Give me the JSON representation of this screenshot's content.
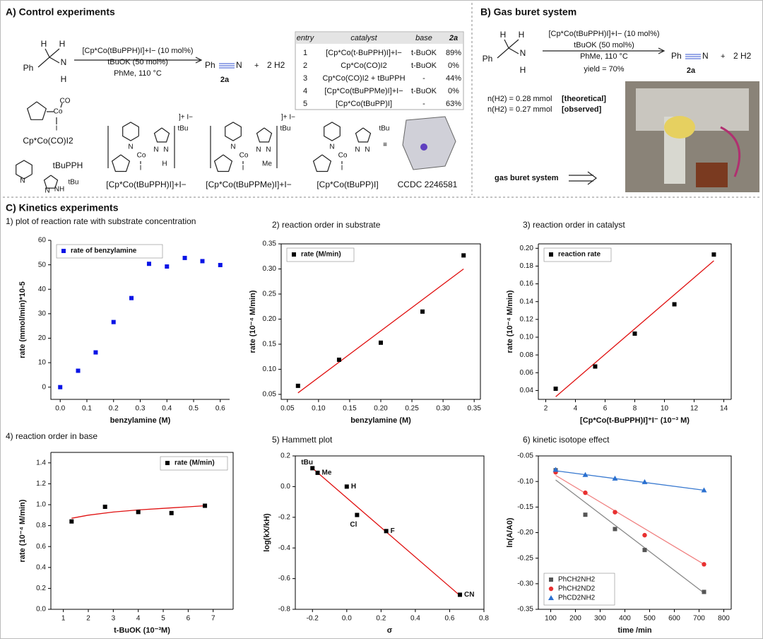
{
  "panel_a": {
    "title": "A) Control experiments",
    "substrate_atoms": [
      "H",
      "H",
      "Ph",
      "N",
      "H"
    ],
    "conditions": [
      "[Cp*Co(tBuPPH)I]+I− (10 mol%)",
      "tBuOK (50 mol%)",
      "PhMe, 110 °C"
    ],
    "product": {
      "ph": "Ph",
      "n": "N",
      "label": "2a",
      "plus": "+",
      "h2": "2 H2"
    },
    "table": {
      "headers": [
        "entry",
        "catalyst",
        "base",
        "2a"
      ],
      "rows": [
        [
          "1",
          "[Cp*Co(t-BuPPH)I]+I−",
          "t-BuOK",
          "89%"
        ],
        [
          "2",
          "Cp*Co(CO)I2",
          "t-BuOK",
          "0%"
        ],
        [
          "3",
          "Cp*Co(CO)I2 + tBuPPH",
          "-",
          "44%"
        ],
        [
          "4",
          "[Cp*Co(tBuPPMe)I]+I−",
          "t-BuOK",
          "0%"
        ],
        [
          "5",
          "[Cp*Co(tBuPP)I]",
          "-",
          "63%"
        ]
      ]
    },
    "structures": [
      {
        "name": "Cp*Co(CO)I2",
        "atoms": [
          "Co",
          "CO",
          "I"
        ]
      },
      {
        "name": "tBuPPH",
        "atoms": [
          "N",
          "N",
          "NH",
          "tBu"
        ]
      },
      {
        "name": "[Cp*Co(tBuPPH)I]+I−",
        "atoms": [
          "N",
          "Co",
          "N",
          "N",
          "H",
          "I",
          "tBu",
          "]+ I−"
        ]
      },
      {
        "name": "[Cp*Co(tBuPPMe)I]+I−",
        "atoms": [
          "N",
          "Co",
          "N",
          "N",
          "Me",
          "I",
          "tBu",
          "]+ I−"
        ]
      },
      {
        "name": "[Cp*Co(tBuPP)I]",
        "atoms": [
          "N",
          "Co",
          "N",
          "N",
          "I",
          "tBu"
        ]
      },
      {
        "name": "CCDC 2246581",
        "atoms": [
          "≡"
        ]
      }
    ]
  },
  "panel_b": {
    "title": "B) Gas buret system",
    "substrate_atoms": [
      "H",
      "H",
      "Ph",
      "N",
      "H"
    ],
    "conditions": [
      "[Cp*Co(tBuPPH)I]+I− (10 mol%)",
      "tBuOK (50 mol%)",
      "PhMe, 110 °C",
      "yield = 70%"
    ],
    "product": {
      "ph": "Ph",
      "n": "N",
      "label": "2a",
      "plus": "+",
      "h2": "2 H2"
    },
    "measurements": [
      {
        "text": "n(H2) = 0.28 mmol",
        "tag": "[theoretical]"
      },
      {
        "text": "n(H2) = 0.27 mmol",
        "tag": "[observed]"
      }
    ],
    "photo_label": "gas buret system"
  },
  "panel_c": {
    "title": "C) Kinetics experiments"
  },
  "chart_data": [
    {
      "type": "scatter",
      "title": "1) plot of reaction rate with substrate concentration",
      "x_label": "benzylamine (M)",
      "y_label": "rate (mmol/min)*10-5",
      "xlim": [
        -0.035,
        0.635
      ],
      "xticks": [
        {
          "value": 0,
          "label": "0.0"
        },
        0.1,
        0.2,
        0.3,
        0.4,
        0.5,
        0.6
      ],
      "ylim": [
        -5,
        60
      ],
      "yticks": [
        0,
        10,
        20,
        30,
        40,
        50,
        60
      ],
      "legend": "upper left",
      "series": [
        {
          "name": "rate of benzylamine",
          "color": "#0a14e6",
          "marker": "square",
          "x": [
            0,
            0.067,
            0.133,
            0.2,
            0.267,
            0.333,
            0.4,
            0.467,
            0.533,
            0.6
          ],
          "values": [
            0,
            6.7,
            14.2,
            26.6,
            36.4,
            50.4,
            49.3,
            52.8,
            51.5,
            49.9
          ]
        }
      ]
    },
    {
      "type": "scatter",
      "title": "2) reaction order in substrate",
      "x_label": "benzylamine  (M)",
      "y_label": "rate (10⁻⁴ M/min)",
      "xlim": [
        0.04,
        0.36
      ],
      "xticks": [
        0.05,
        {
          "value": 0.1,
          "label": "0.10"
        },
        0.15,
        {
          "value": 0.2,
          "label": "0.20"
        },
        0.25,
        {
          "value": 0.3,
          "label": "0.30"
        },
        0.35
      ],
      "ylim": [
        0.04,
        0.35
      ],
      "yticks": [
        0.05,
        {
          "value": 0.1,
          "label": "0.10"
        },
        0.15,
        {
          "value": 0.2,
          "label": "0.20"
        },
        0.25,
        {
          "value": 0.3,
          "label": "0.30"
        },
        0.35
      ],
      "legend": "upper left",
      "series": [
        {
          "name": "rate (M/min)",
          "color": "#000000",
          "marker": "square",
          "x": [
            0.067,
            0.133,
            0.2,
            0.267,
            0.333
          ],
          "values": [
            0.067,
            0.119,
            0.153,
            0.215,
            0.327
          ],
          "fit": {
            "color": "#e01010",
            "x": [
              0.067,
              0.333
            ],
            "values": [
              0.053,
              0.3
            ]
          }
        }
      ]
    },
    {
      "type": "scatter",
      "title": "3) reaction order in catalyst",
      "x_label": "[Cp*Co(t-BuPPH)I]⁺I⁻ (10⁻³ M)",
      "y_label": "rate (10⁻⁴ M/min)",
      "xlim": [
        1.5,
        14.5
      ],
      "xticks": [
        2,
        4,
        6,
        8,
        10,
        12,
        14
      ],
      "ylim": [
        0.03,
        0.205
      ],
      "yticks": [
        0.04,
        0.06,
        0.08,
        {
          "value": 0.1,
          "label": "0.10"
        },
        0.12,
        0.14,
        0.16,
        0.18,
        {
          "value": 0.2,
          "label": "0.20"
        }
      ],
      "legend": "upper left",
      "series": [
        {
          "name": "reaction rate",
          "color": "#000000",
          "marker": "square",
          "x": [
            2.67,
            5.33,
            8.0,
            10.67,
            13.33
          ],
          "values": [
            0.042,
            0.067,
            0.104,
            0.137,
            0.193
          ],
          "fit": {
            "color": "#e01010",
            "x": [
              2.67,
              13.33
            ],
            "values": [
              0.033,
              0.186
            ]
          }
        }
      ]
    },
    {
      "type": "scatter",
      "title": "4) reaction order in base",
      "x_label": "t-BuOK (10⁻³M)",
      "y_label": "rate (10⁻⁴ M/min)",
      "xlim": [
        0.5,
        7.8
      ],
      "xticks": [
        1,
        2,
        3,
        4,
        5,
        6,
        7
      ],
      "ylim": [
        0,
        1.5
      ],
      "yticks": [
        {
          "value": 0,
          "label": "0.0"
        },
        0.2,
        0.4,
        0.6,
        0.8,
        {
          "value": 1,
          "label": "1.0"
        },
        1.2,
        1.4
      ],
      "legend": "upper right",
      "series": [
        {
          "name": "rate (M/min)",
          "color": "#000000",
          "marker": "square",
          "x": [
            1.33,
            2.67,
            4.0,
            5.33,
            6.67
          ],
          "values": [
            0.84,
            0.98,
            0.93,
            0.92,
            0.99
          ],
          "fit": {
            "color": "#e01010",
            "x": [
              1.33,
              2,
              3,
              4,
              5,
              6,
              6.67
            ],
            "values": [
              0.87,
              0.9,
              0.93,
              0.95,
              0.965,
              0.98,
              0.99
            ]
          }
        }
      ]
    },
    {
      "type": "scatter",
      "title": "5) Hammett plot",
      "x_label": "σ",
      "y_label": "log(kX/kH)",
      "xlim": [
        -0.3,
        0.8
      ],
      "xticks": [
        -0.2,
        {
          "value": 0,
          "label": "0.0"
        },
        0.2,
        0.4,
        0.6,
        0.8
      ],
      "ylim": [
        -0.8,
        0.2
      ],
      "yticks": [
        -0.8,
        -0.6,
        -0.4,
        -0.2,
        {
          "value": 0,
          "label": "0.0"
        },
        0.2
      ],
      "series": [
        {
          "color": "#000000",
          "marker": "square",
          "x": [
            -0.2,
            -0.17,
            0,
            0.06,
            0.23,
            0.66
          ],
          "values": [
            0.12,
            0.09,
            0,
            -0.185,
            -0.29,
            -0.705
          ],
          "point_labels": [
            "tBu",
            "Me",
            "H",
            "Cl",
            "F",
            "CN"
          ],
          "fit": {
            "color": "#e01010",
            "x": [
              -0.2,
              0.66
            ],
            "values": [
              0.12,
              -0.71
            ]
          }
        }
      ]
    },
    {
      "type": "scatter",
      "title": "6) kinetic isotope effect",
      "x_label": "time /min",
      "y_label": "ln(A/A0)",
      "xlim": [
        50,
        830
      ],
      "xticks": [
        100,
        200,
        300,
        400,
        500,
        600,
        700,
        800
      ],
      "ylim": [
        -0.35,
        -0.05
      ],
      "yticks": [
        {
          "value": -0.35,
          "label": "-0.35"
        },
        {
          "value": -0.3,
          "label": "-0.30"
        },
        -0.25,
        {
          "value": -0.2,
          "label": "-0.20"
        },
        -0.15,
        {
          "value": -0.1,
          "label": "-0.10"
        },
        -0.05
      ],
      "legend": "lower left",
      "series": [
        {
          "name": "PhCH2NH2",
          "color": "#555555",
          "marker": "square",
          "x": [
            120,
            240,
            360,
            480,
            720
          ],
          "values": [
            -0.078,
            -0.165,
            -0.193,
            -0.234,
            -0.316
          ],
          "fit": {
            "color": "#888888",
            "x": [
              120,
              720
            ],
            "values": [
              -0.097,
              -0.318
            ]
          }
        },
        {
          "name": "PhCH2ND2",
          "color": "#e83030",
          "marker": "circle",
          "x": [
            120,
            240,
            360,
            480,
            720
          ],
          "values": [
            -0.082,
            -0.122,
            -0.16,
            -0.205,
            -0.262
          ],
          "fit": {
            "color": "#f08080",
            "x": [
              120,
              720
            ],
            "values": [
              -0.088,
              -0.262
            ]
          }
        },
        {
          "name": "PhCD2NH2",
          "color": "#2a70d0",
          "marker": "triangle",
          "x": [
            120,
            240,
            360,
            480,
            720
          ],
          "values": [
            -0.077,
            -0.087,
            -0.094,
            -0.101,
            -0.117
          ],
          "fit": {
            "color": "#3a7ad0",
            "x": [
              120,
              720
            ],
            "values": [
              -0.079,
              -0.117
            ]
          }
        }
      ]
    }
  ]
}
